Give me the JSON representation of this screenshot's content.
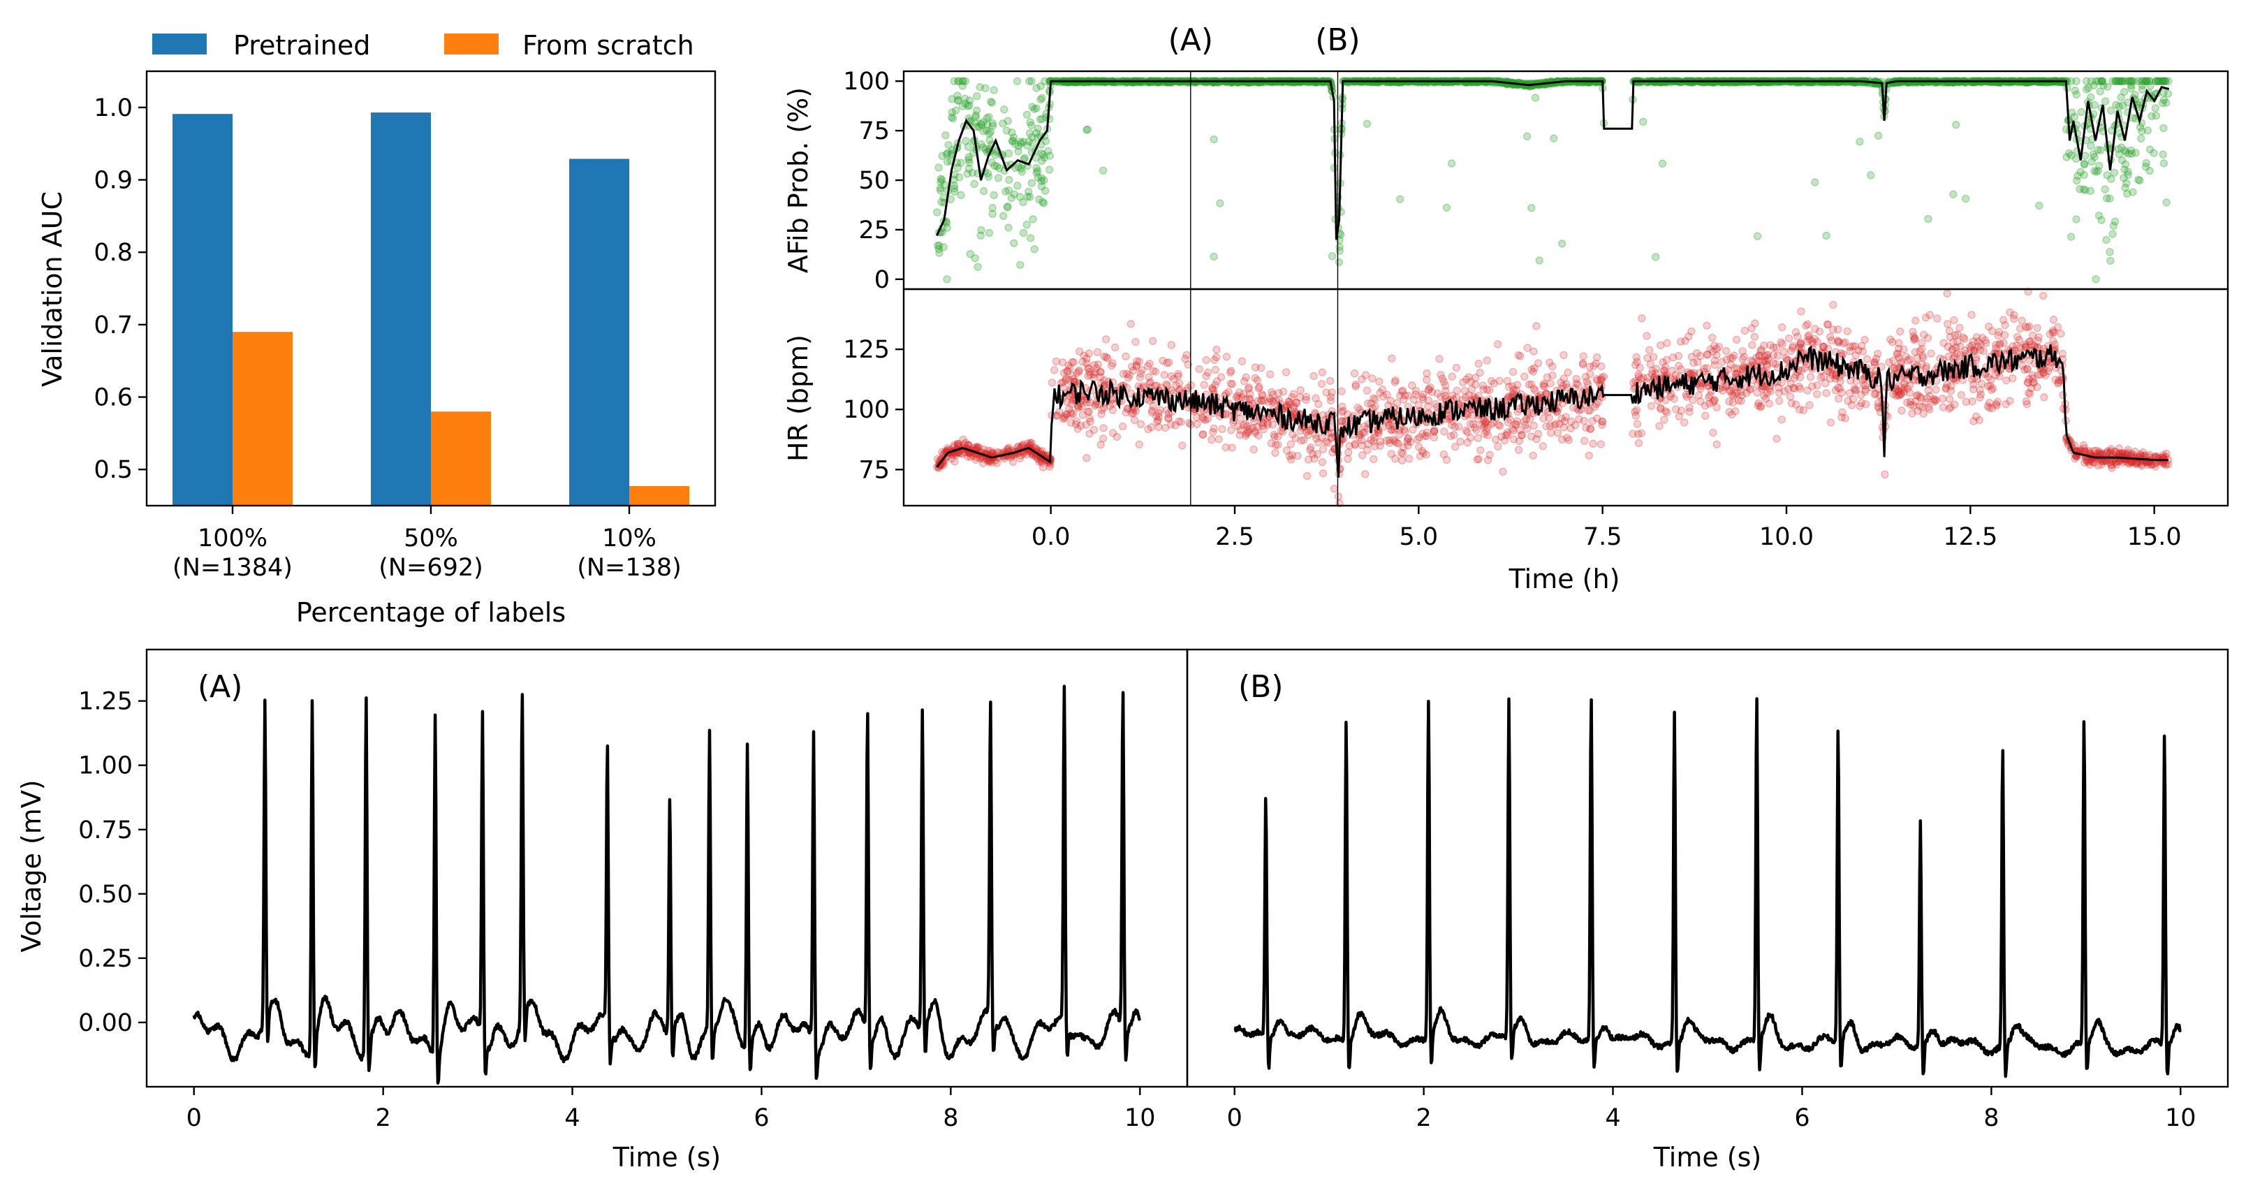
{
  "chart_data": [
    {
      "id": "auc",
      "type": "bar",
      "categories": [
        "100%\n(N=1384)",
        "50%\n(N=692)",
        "10%\n(N=138)"
      ],
      "series": [
        {
          "name": "Pretrained",
          "values": [
            0.991,
            0.993,
            0.929
          ],
          "color": "#1f77b4"
        },
        {
          "name": "From scratch",
          "values": [
            0.69,
            0.58,
            0.477
          ],
          "color": "#ff7f0e"
        }
      ],
      "xlabel": "Percentage of labels",
      "ylabel": "Validation AUC",
      "ylim": [
        0.45,
        1.05
      ],
      "yticks": [
        0.5,
        0.6,
        0.7,
        0.8,
        0.9,
        1.0
      ],
      "ytick_labels": [
        "0.5",
        "0.6",
        "0.7",
        "0.8",
        "0.9",
        "1.0"
      ],
      "legend_placement": "top, above plot"
    },
    {
      "id": "afib",
      "type": "scatter",
      "ylabel": "AFib Prob. (%)",
      "xlim": [
        -2.0,
        16.0
      ],
      "ylim": [
        -5,
        105
      ],
      "yticks": [
        0,
        25,
        50,
        75,
        100
      ],
      "ytick_labels": [
        "0",
        "25",
        "50",
        "75",
        "100"
      ],
      "point_color": "#2ca02c",
      "line_color": "#000000",
      "markers": [
        {
          "label": "(A)",
          "x": 1.9
        },
        {
          "label": "(B)",
          "x": 3.9
        }
      ],
      "trend": [
        [
          -1.55,
          22
        ],
        [
          -1.45,
          30
        ],
        [
          -1.35,
          55
        ],
        [
          -1.25,
          70
        ],
        [
          -1.15,
          80
        ],
        [
          -1.05,
          75
        ],
        [
          -0.95,
          50
        ],
        [
          -0.85,
          62
        ],
        [
          -0.75,
          70
        ],
        [
          -0.6,
          55
        ],
        [
          -0.45,
          60
        ],
        [
          -0.3,
          58
        ],
        [
          -0.15,
          70
        ],
        [
          -0.05,
          75
        ],
        [
          0.0,
          100
        ],
        [
          0.5,
          100
        ],
        [
          1.0,
          100
        ],
        [
          1.5,
          100
        ],
        [
          2.0,
          100
        ],
        [
          2.5,
          100
        ],
        [
          3.0,
          100
        ],
        [
          3.5,
          100
        ],
        [
          3.8,
          100
        ],
        [
          3.85,
          90
        ],
        [
          3.88,
          20
        ],
        [
          3.92,
          30
        ],
        [
          3.97,
          100
        ],
        [
          4.5,
          100
        ],
        [
          5.0,
          100
        ],
        [
          5.5,
          100
        ],
        [
          6.0,
          100
        ],
        [
          6.5,
          98
        ],
        [
          7.0,
          100
        ],
        [
          7.5,
          100
        ],
        [
          7.52,
          76
        ],
        [
          7.9,
          76
        ],
        [
          7.92,
          100
        ],
        [
          8.5,
          100
        ],
        [
          9.0,
          100
        ],
        [
          9.5,
          100
        ],
        [
          10.0,
          100
        ],
        [
          10.5,
          100
        ],
        [
          11.0,
          100
        ],
        [
          11.3,
          99
        ],
        [
          11.33,
          80
        ],
        [
          11.36,
          99
        ],
        [
          11.5,
          100
        ],
        [
          12.0,
          100
        ],
        [
          12.5,
          100
        ],
        [
          13.0,
          100
        ],
        [
          13.5,
          100
        ],
        [
          13.8,
          100
        ],
        [
          13.85,
          70
        ],
        [
          13.9,
          80
        ],
        [
          14.0,
          60
        ],
        [
          14.1,
          90
        ],
        [
          14.2,
          70
        ],
        [
          14.3,
          88
        ],
        [
          14.4,
          55
        ],
        [
          14.5,
          85
        ],
        [
          14.6,
          70
        ],
        [
          14.7,
          92
        ],
        [
          14.8,
          80
        ],
        [
          14.9,
          95
        ],
        [
          15.0,
          90
        ],
        [
          15.1,
          97
        ],
        [
          15.2,
          96
        ]
      ]
    },
    {
      "id": "hr",
      "type": "scatter",
      "xlabel": "Time (h)",
      "ylabel": "HR (bpm)",
      "xlim": [
        -2.0,
        16.0
      ],
      "ylim": [
        60,
        150
      ],
      "xticks": [
        0.0,
        2.5,
        5.0,
        7.5,
        10.0,
        12.5,
        15.0
      ],
      "xtick_labels": [
        "0.0",
        "2.5",
        "5.0",
        "7.5",
        "10.0",
        "12.5",
        "15.0"
      ],
      "yticks": [
        75,
        100,
        125
      ],
      "ytick_labels": [
        "75",
        "100",
        "125"
      ],
      "point_color": "#d62728",
      "line_color": "#000000",
      "trend": [
        [
          -1.55,
          76
        ],
        [
          -1.4,
          82
        ],
        [
          -1.2,
          84
        ],
        [
          -1.0,
          82
        ],
        [
          -0.8,
          80
        ],
        [
          -0.5,
          82
        ],
        [
          -0.3,
          84
        ],
        [
          -0.1,
          80
        ],
        [
          0.0,
          78
        ],
        [
          0.02,
          105
        ],
        [
          0.5,
          108
        ],
        [
          1.0,
          106
        ],
        [
          1.5,
          105
        ],
        [
          2.0,
          103
        ],
        [
          2.5,
          100
        ],
        [
          3.0,
          98
        ],
        [
          3.5,
          95
        ],
        [
          3.85,
          95
        ],
        [
          3.9,
          72
        ],
        [
          3.95,
          92
        ],
        [
          4.5,
          96
        ],
        [
          5.0,
          97
        ],
        [
          5.5,
          100
        ],
        [
          6.0,
          100
        ],
        [
          6.5,
          102
        ],
        [
          7.0,
          104
        ],
        [
          7.5,
          106
        ],
        [
          7.9,
          106
        ],
        [
          8.0,
          108
        ],
        [
          8.5,
          110
        ],
        [
          9.0,
          112
        ],
        [
          9.5,
          114
        ],
        [
          10.0,
          116
        ],
        [
          10.2,
          122
        ],
        [
          10.5,
          120
        ],
        [
          11.0,
          116
        ],
        [
          11.3,
          112
        ],
        [
          11.33,
          80
        ],
        [
          11.36,
          112
        ],
        [
          11.5,
          113
        ],
        [
          12.0,
          115
        ],
        [
          12.5,
          118
        ],
        [
          13.0,
          120
        ],
        [
          13.5,
          122
        ],
        [
          13.75,
          122
        ],
        [
          13.8,
          90
        ],
        [
          13.9,
          82
        ],
        [
          14.2,
          80
        ],
        [
          14.5,
          80
        ],
        [
          15.0,
          79
        ],
        [
          15.2,
          79
        ]
      ]
    },
    {
      "id": "ecgA",
      "type": "line",
      "annotation": "(A)",
      "xlabel": "Time (s)",
      "ylabel": "Voltage (mV)",
      "xlim": [
        -0.5,
        10.5
      ],
      "ylim": [
        -0.25,
        1.45
      ],
      "xticks": [
        0,
        2,
        4,
        6,
        8,
        10
      ],
      "xtick_labels": [
        "0",
        "2",
        "4",
        "6",
        "8",
        "10"
      ],
      "yticks": [
        0.0,
        0.25,
        0.5,
        0.75,
        1.0,
        1.25
      ],
      "ytick_labels": [
        "0.00",
        "0.25",
        "0.50",
        "0.75",
        "1.00",
        "1.25"
      ],
      "beats": [
        [
          0.75,
          1.24
        ],
        [
          1.25,
          1.35
        ],
        [
          1.82,
          1.39
        ],
        [
          2.55,
          1.34
        ],
        [
          3.05,
          1.28
        ],
        [
          3.47,
          1.28
        ],
        [
          4.37,
          1.1
        ],
        [
          5.03,
          0.91
        ],
        [
          5.45,
          1.16
        ],
        [
          5.85,
          1.19
        ],
        [
          6.55,
          1.21
        ],
        [
          7.12,
          1.26
        ],
        [
          7.7,
          1.25
        ],
        [
          8.42,
          1.23
        ],
        [
          9.2,
          1.3
        ],
        [
          9.82,
          1.33
        ]
      ]
    },
    {
      "id": "ecgB",
      "type": "line",
      "annotation": "(B)",
      "xlabel": "Time (s)",
      "xlim": [
        -0.5,
        10.5
      ],
      "ylim": [
        -0.25,
        1.45
      ],
      "xticks": [
        0,
        2,
        4,
        6,
        8,
        10
      ],
      "xtick_labels": [
        "0",
        "2",
        "4",
        "6",
        "8",
        "10"
      ],
      "beats": [
        [
          0.33,
          0.94
        ],
        [
          1.18,
          1.27
        ],
        [
          2.05,
          1.32
        ],
        [
          2.9,
          1.31
        ],
        [
          3.77,
          1.34
        ],
        [
          4.65,
          1.29
        ],
        [
          5.52,
          1.35
        ],
        [
          6.38,
          1.22
        ],
        [
          7.25,
          0.87
        ],
        [
          8.12,
          1.16
        ],
        [
          8.98,
          1.26
        ],
        [
          9.83,
          1.21
        ]
      ]
    }
  ]
}
